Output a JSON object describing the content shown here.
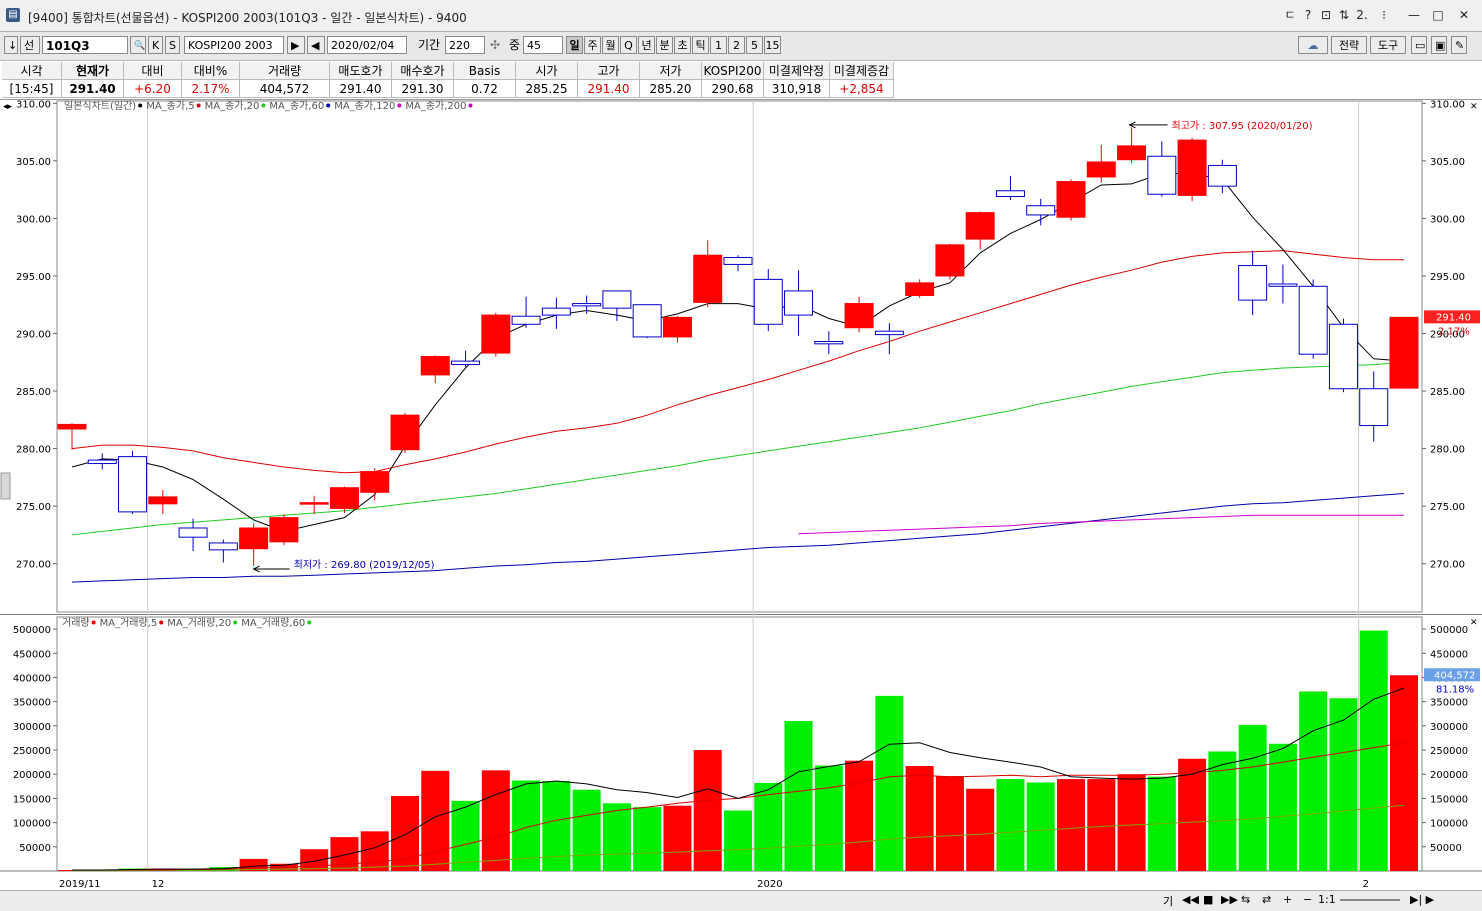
{
  "window": {
    "title": "[9400] 통합차트(선물옵션) - KOSPI200 2003(101Q3 - 일간 - 일본식차트) - 9400",
    "icon_glyph": "▤"
  },
  "title_buttons": [
    {
      "name": "pin-icon",
      "glyph": "ㄷ"
    },
    {
      "name": "help-icon",
      "glyph": "?"
    },
    {
      "name": "window-icon",
      "glyph": "⊡"
    },
    {
      "name": "toggle-icon",
      "glyph": "⇅"
    },
    {
      "name": "number-icon",
      "glyph": "2."
    },
    {
      "name": "menu-icon",
      "glyph": "⁝"
    },
    {
      "name": "minimize-icon",
      "glyph": "—"
    },
    {
      "name": "maximize-icon",
      "glyph": "□"
    },
    {
      "name": "close-icon",
      "glyph": "✕"
    }
  ],
  "toolbar": {
    "arrow_glyph": "↓",
    "mode_label": "선",
    "code_value": "101Q3",
    "search_glyph": "🔍",
    "k_label": "K",
    "s_label": "S",
    "instrument": "KOSPI200 2003",
    "date_value": "2020/02/04",
    "period_label": "기간",
    "period_value": "220",
    "count_label": "중",
    "count_value": "45",
    "intervals": [
      "일",
      "주",
      "월",
      "Q",
      "년",
      "분",
      "초",
      "틱",
      "1",
      "2",
      "5",
      "15"
    ],
    "strategy_label": "전략",
    "tools_label": "도구"
  },
  "quote": {
    "headers": [
      "시각",
      "현재가",
      "대비",
      "대비%",
      "거래량",
      "매도호가",
      "매수호가",
      "Basis",
      "시가",
      "고가",
      "저가",
      "KOSPI200",
      "미결제약정",
      "미결제증감"
    ],
    "values": [
      "[15:45]",
      "291.40",
      "+6.20",
      "2.17%",
      "404,572",
      "291.40",
      "291.30",
      "0.72",
      "285.25",
      "291.40",
      "285.20",
      "290.68",
      "310,918",
      "+2,854"
    ]
  },
  "colors": {
    "up": "#ff0000",
    "down_line": "#0000cc",
    "ma5": "#000000",
    "ma20": "#dd0000",
    "ma60": "#22cc22",
    "ma120": "#0000aa",
    "ma200": "#cc00cc",
    "vol_up": "#ff0000",
    "vol_down": "#00ee00"
  },
  "price_legend": [
    {
      "text": "일본식차트(일간)",
      "color": "#555555"
    },
    {
      "text": "MA_종가,5",
      "color": "#555555",
      "dot": "#000000"
    },
    {
      "text": "MA_종가,20",
      "color": "#555555",
      "dot": "#dd0000"
    },
    {
      "text": "MA_종가,60",
      "color": "#555555",
      "dot": "#22cc22"
    },
    {
      "text": "MA_종가,120",
      "color": "#555555",
      "dot": "#0000aa"
    },
    {
      "text": "MA_종가,200",
      "color": "#555555",
      "dot": "#cc00cc"
    }
  ],
  "volume_legend": [
    {
      "text": "거래량",
      "color": "#555555",
      "dot": "#ff0000"
    },
    {
      "text": "MA_거래량,5",
      "color": "#555555",
      "dot": "#000000"
    },
    {
      "text": "MA_거래량,20",
      "color": "#555555",
      "dot": "#dd0000"
    },
    {
      "text": "MA_거래량,60",
      "color": "#555555",
      "dot": "#22cc22"
    }
  ],
  "chart_data": {
    "type": "candlestick",
    "price_axis": {
      "min": 265.8,
      "max": 310.2,
      "ticks": [
        "310.00",
        "305.00",
        "300.00",
        "295.00",
        "290.00",
        "285.00",
        "280.00",
        "275.00",
        "270.00"
      ]
    },
    "volume_axis": {
      "min": 0,
      "max": 525000,
      "ticks": [
        "500000",
        "450000",
        "400000",
        "350000",
        "300000",
        "250000",
        "200000",
        "150000",
        "100000",
        "50000"
      ]
    },
    "x_labels": [
      {
        "text": "2019/11",
        "index": 0
      },
      {
        "text": "12",
        "index": 3
      },
      {
        "text": "2020",
        "index": 23
      },
      {
        "text": "2",
        "index": 43
      }
    ],
    "candles": [
      {
        "o": 281.7,
        "h": 282.2,
        "l": 279.9,
        "c": 282.1,
        "v": 2000
      },
      {
        "o": 279.0,
        "h": 279.6,
        "l": 278.2,
        "c": 278.7,
        "v": 2000
      },
      {
        "o": 279.3,
        "h": 279.8,
        "l": 274.3,
        "c": 274.5,
        "v": 5000
      },
      {
        "o": 275.2,
        "h": 276.4,
        "l": 274.3,
        "c": 275.8,
        "v": 5000
      },
      {
        "o": 273.1,
        "h": 273.9,
        "l": 271.1,
        "c": 272.3,
        "v": 5000
      },
      {
        "o": 271.8,
        "h": 272.1,
        "l": 270.1,
        "c": 271.2,
        "v": 8000
      },
      {
        "o": 271.3,
        "h": 273.5,
        "l": 269.8,
        "c": 273.1,
        "v": 25000
      },
      {
        "o": 271.9,
        "h": 274.3,
        "l": 271.6,
        "c": 274.0,
        "v": 15000
      },
      {
        "o": 275.2,
        "h": 275.9,
        "l": 274.3,
        "c": 275.3,
        "v": 45000
      },
      {
        "o": 274.8,
        "h": 276.7,
        "l": 274.4,
        "c": 276.6,
        "v": 70000
      },
      {
        "o": 276.2,
        "h": 278.3,
        "l": 275.5,
        "c": 278.0,
        "v": 82000
      },
      {
        "o": 279.9,
        "h": 283.1,
        "l": 279.6,
        "c": 282.9,
        "v": 155000
      },
      {
        "o": 286.4,
        "h": 288.1,
        "l": 285.7,
        "c": 288.0,
        "v": 207000
      },
      {
        "o": 287.6,
        "h": 288.5,
        "l": 287.1,
        "c": 287.3,
        "v": 145000
      },
      {
        "o": 288.3,
        "h": 291.8,
        "l": 288.0,
        "c": 291.6,
        "v": 208000
      },
      {
        "o": 291.5,
        "h": 293.2,
        "l": 290.5,
        "c": 290.8,
        "v": 187000
      },
      {
        "o": 292.2,
        "h": 293.1,
        "l": 290.4,
        "c": 291.6,
        "v": 186000
      },
      {
        "o": 292.6,
        "h": 293.3,
        "l": 291.7,
        "c": 292.4,
        "v": 168000
      },
      {
        "o": 293.7,
        "h": 293.7,
        "l": 291.1,
        "c": 292.2,
        "v": 140000
      },
      {
        "o": 292.5,
        "h": 292.5,
        "l": 289.6,
        "c": 289.7,
        "v": 132000
      },
      {
        "o": 289.7,
        "h": 291.5,
        "l": 289.2,
        "c": 291.4,
        "v": 135000
      },
      {
        "o": 292.7,
        "h": 298.1,
        "l": 292.3,
        "c": 296.8,
        "v": 250000
      },
      {
        "o": 296.6,
        "h": 296.8,
        "l": 295.4,
        "c": 296.0,
        "v": 125000
      },
      {
        "o": 294.7,
        "h": 295.6,
        "l": 290.2,
        "c": 290.8,
        "v": 182000
      },
      {
        "o": 293.7,
        "h": 295.5,
        "l": 289.8,
        "c": 291.6,
        "v": 310000
      },
      {
        "o": 289.3,
        "h": 290.2,
        "l": 288.2,
        "c": 289.1,
        "v": 218000
      },
      {
        "o": 290.5,
        "h": 293.2,
        "l": 290.1,
        "c": 292.6,
        "v": 228000
      },
      {
        "o": 290.2,
        "h": 290.9,
        "l": 288.2,
        "c": 289.9,
        "v": 362000
      },
      {
        "o": 293.3,
        "h": 294.7,
        "l": 293.1,
        "c": 294.4,
        "v": 217000
      },
      {
        "o": 295.0,
        "h": 297.8,
        "l": 294.7,
        "c": 297.7,
        "v": 196000
      },
      {
        "o": 298.2,
        "h": 300.6,
        "l": 297.3,
        "c": 300.5,
        "v": 170000
      },
      {
        "o": 302.4,
        "h": 303.7,
        "l": 301.6,
        "c": 301.9,
        "v": 190000
      },
      {
        "o": 301.1,
        "h": 301.7,
        "l": 299.4,
        "c": 300.3,
        "v": 183000
      },
      {
        "o": 300.1,
        "h": 303.4,
        "l": 299.8,
        "c": 303.2,
        "v": 190000
      },
      {
        "o": 303.6,
        "h": 306.4,
        "l": 303.1,
        "c": 304.9,
        "v": 190000
      },
      {
        "o": 305.1,
        "h": 307.9,
        "l": 304.8,
        "c": 306.3,
        "v": 200000
      },
      {
        "o": 305.4,
        "h": 306.7,
        "l": 301.9,
        "c": 302.1,
        "v": 195000
      },
      {
        "o": 302.0,
        "h": 307.0,
        "l": 301.5,
        "c": 306.8,
        "v": 232000
      },
      {
        "o": 304.6,
        "h": 305.1,
        "l": 302.2,
        "c": 302.8,
        "v": 247000
      },
      {
        "o": 295.9,
        "h": 297.2,
        "l": 291.6,
        "c": 292.9,
        "v": 302000
      },
      {
        "o": 294.3,
        "h": 296.0,
        "l": 292.6,
        "c": 294.1,
        "v": 263000
      },
      {
        "o": 294.1,
        "h": 294.7,
        "l": 287.8,
        "c": 288.2,
        "v": 371000
      },
      {
        "o": 290.8,
        "h": 291.3,
        "l": 284.9,
        "c": 285.2,
        "v": 357000
      },
      {
        "o": 285.2,
        "h": 286.7,
        "l": 280.6,
        "c": 282.0,
        "v": 497000
      },
      {
        "o": 285.25,
        "h": 291.4,
        "l": 285.2,
        "c": 291.4,
        "v": 404572
      }
    ],
    "ma5": [
      278.4,
      279.1,
      279.0,
      278.4,
      277.3,
      275.6,
      273.8,
      272.8,
      273.4,
      274.0,
      276.0,
      280.2,
      283.8,
      287.0,
      289.6,
      290.8,
      291.6,
      292.0,
      291.6,
      291.1,
      291.7,
      292.6,
      292.6,
      292.1,
      292.5,
      291.3,
      290.6,
      292.4,
      293.6,
      294.4,
      297.0,
      298.7,
      299.9,
      301.4,
      302.9,
      303.0,
      303.9,
      303.9,
      303.4,
      300.1,
      297.3,
      294.1,
      290.5,
      287.8,
      287.6
    ],
    "ma20": [
      280.0,
      280.3,
      280.3,
      280.1,
      279.8,
      279.2,
      278.8,
      278.4,
      278.1,
      277.9,
      278.0,
      278.6,
      279.1,
      279.7,
      280.4,
      281.0,
      281.5,
      281.8,
      282.2,
      282.9,
      283.8,
      284.6,
      285.3,
      286.0,
      286.8,
      287.6,
      288.5,
      289.3,
      290.2,
      291.0,
      291.8,
      292.6,
      293.4,
      294.2,
      294.9,
      295.5,
      296.2,
      296.7,
      297.0,
      297.1,
      297.2,
      296.9,
      296.6,
      296.4,
      296.4
    ],
    "ma60": [
      272.5,
      272.8,
      273.1,
      273.4,
      273.6,
      273.8,
      274.0,
      274.2,
      274.4,
      274.6,
      274.9,
      275.2,
      275.5,
      275.8,
      276.1,
      276.5,
      276.9,
      277.3,
      277.7,
      278.1,
      278.5,
      279.0,
      279.4,
      279.8,
      280.2,
      280.6,
      281.0,
      281.4,
      281.8,
      282.3,
      282.8,
      283.3,
      283.9,
      284.4,
      284.9,
      285.4,
      285.8,
      286.2,
      286.6,
      286.8,
      287.0,
      287.1,
      287.2,
      287.3,
      287.5
    ],
    "ma120": [
      268.4,
      268.5,
      268.6,
      268.7,
      268.8,
      268.8,
      268.9,
      268.9,
      269.0,
      269.1,
      269.2,
      269.3,
      269.4,
      269.6,
      269.8,
      269.9,
      270.1,
      270.2,
      270.4,
      270.6,
      270.8,
      271.0,
      271.2,
      271.4,
      271.5,
      271.6,
      271.8,
      272.0,
      272.2,
      272.4,
      272.6,
      272.9,
      273.2,
      273.5,
      273.8,
      274.1,
      274.4,
      274.7,
      275.0,
      275.2,
      275.3,
      275.5,
      275.7,
      275.9,
      276.1
    ],
    "ma200": [
      null,
      null,
      null,
      null,
      null,
      null,
      null,
      null,
      null,
      null,
      null,
      null,
      null,
      null,
      null,
      null,
      null,
      null,
      null,
      null,
      null,
      null,
      null,
      null,
      272.6,
      272.7,
      272.8,
      272.9,
      273.0,
      273.1,
      273.2,
      273.3,
      273.5,
      273.6,
      273.7,
      273.8,
      273.9,
      274.0,
      274.1,
      274.2,
      274.2,
      274.2,
      274.2,
      274.2,
      274.2
    ],
    "vma5": [
      2000,
      2000,
      3000,
      4000,
      4000,
      5000,
      10000,
      12000,
      20000,
      33000,
      48000,
      75000,
      112000,
      132000,
      158000,
      180000,
      186000,
      180000,
      168000,
      162000,
      152000,
      170000,
      150000,
      168000,
      205000,
      216000,
      226000,
      262000,
      265000,
      245000,
      234000,
      225000,
      215000,
      195000,
      192000,
      190000,
      192000,
      200000,
      220000,
      233000,
      253000,
      290000,
      312000,
      355000,
      378000
    ],
    "vma20": [
      2000,
      2000,
      2000,
      2500,
      3000,
      3500,
      6000,
      8000,
      10000,
      14000,
      18000,
      25000,
      40000,
      55000,
      70000,
      90000,
      105000,
      115000,
      125000,
      132000,
      140000,
      146000,
      150000,
      158000,
      165000,
      172000,
      182000,
      195000,
      198000,
      195000,
      196000,
      198000,
      195000,
      198000,
      198000,
      198000,
      200000,
      203000,
      208000,
      215000,
      225000,
      235000,
      245000,
      255000,
      265000
    ],
    "vma60": [
      1000,
      1000,
      1200,
      1400,
      1600,
      1900,
      3000,
      4000,
      5000,
      6000,
      8000,
      10000,
      14000,
      18000,
      22000,
      26000,
      30000,
      33000,
      35000,
      37000,
      39000,
      42000,
      44000,
      47000,
      51000,
      55000,
      60000,
      66000,
      70000,
      73000,
      76000,
      80000,
      84000,
      88000,
      92000,
      95000,
      98000,
      101000,
      104000,
      108000,
      113000,
      118000,
      124000,
      130000,
      136000
    ],
    "annotations": {
      "high": {
        "text": "최고가 : 307.95 (2020/01/20)",
        "index": 35,
        "value": 307.95
      },
      "low": {
        "text": "최저가 : 269.80 (2019/12/05)",
        "index": 6,
        "value": 269.8
      }
    },
    "current_price": {
      "value": "291.40",
      "change": "2.17%"
    },
    "current_volume": {
      "value": "404,572",
      "change": "81.18%"
    }
  },
  "bottom": {
    "labels": [
      "기",
      "◀◀",
      "■",
      "▶▶",
      "⇆",
      "⇄",
      "+",
      "−",
      "1:1"
    ]
  }
}
